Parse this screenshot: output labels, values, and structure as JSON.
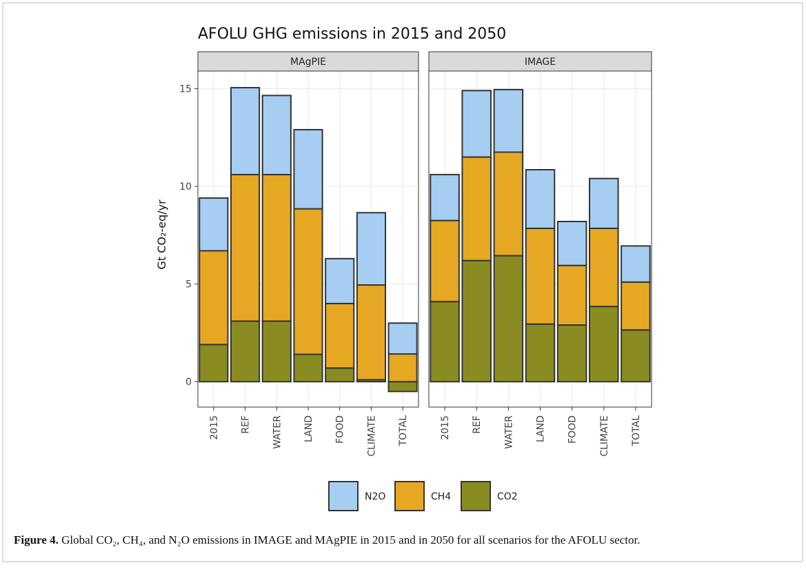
{
  "figure": {
    "title": "AFOLU GHG emissions in 2015 and 2050",
    "y_label": "Gt CO₂-eq/yr",
    "caption_label": "Figure 4.",
    "caption": "Global CO₂, CH₄, and N₂O emissions in IMAGE and MAgPIE in 2015 and in 2050 for all scenarios for the AFOLU sector."
  },
  "chart_data": [
    {
      "type": "bar",
      "stacked": true,
      "title": "MAgPIE",
      "categories": [
        "2015",
        "REF",
        "WATER",
        "LAND",
        "FOOD",
        "CLIMATE",
        "TOTAL"
      ],
      "series": [
        {
          "name": "CO2",
          "color": "#8a8c22",
          "values": [
            1.9,
            3.1,
            3.1,
            1.4,
            0.7,
            0.1,
            -0.5
          ]
        },
        {
          "name": "CH4",
          "color": "#e6a823",
          "values": [
            4.8,
            7.5,
            7.5,
            7.45,
            3.3,
            4.85,
            1.42
          ]
        },
        {
          "name": "N2O",
          "color": "#a6cef2",
          "values": [
            2.7,
            4.45,
            4.05,
            4.05,
            2.3,
            3.7,
            1.58
          ]
        }
      ],
      "ylim": [
        -1.3,
        15.9
      ],
      "yticks": [
        0,
        5,
        10,
        15
      ],
      "grid": true
    },
    {
      "type": "bar",
      "stacked": true,
      "title": "IMAGE",
      "categories": [
        "2015",
        "REF",
        "WATER",
        "LAND",
        "FOOD",
        "CLIMATE",
        "TOTAL"
      ],
      "series": [
        {
          "name": "CO2",
          "color": "#8a8c22",
          "values": [
            4.1,
            6.2,
            6.45,
            2.95,
            2.9,
            3.85,
            2.65
          ]
        },
        {
          "name": "CH4",
          "color": "#e6a823",
          "values": [
            4.15,
            5.3,
            5.3,
            4.9,
            3.05,
            4.0,
            2.45
          ]
        },
        {
          "name": "N2O",
          "color": "#a6cef2",
          "values": [
            2.35,
            3.4,
            3.2,
            3.0,
            2.25,
            2.55,
            1.85
          ]
        }
      ],
      "ylim": [
        -1.3,
        15.9
      ],
      "yticks": [
        0,
        5,
        10,
        15
      ],
      "grid": true
    }
  ]
}
